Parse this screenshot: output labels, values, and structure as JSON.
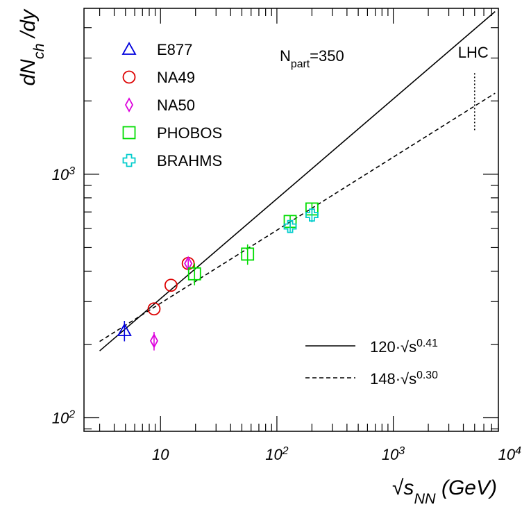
{
  "chart_data": {
    "type": "scatter",
    "x_scale": "log",
    "y_scale": "log",
    "xlim": [
      2.2,
      8000
    ],
    "ylim": [
      88,
      4800
    ],
    "grid": false,
    "legend_placement": "top-left",
    "xlabel": {
      "prefix": "√s",
      "sub": "NN",
      "suffix": " (GeV)"
    },
    "ylabel": {
      "prefix": "dN",
      "sub": "ch",
      "suffix": " /dy"
    },
    "annotation": {
      "base": "N",
      "sub": "part",
      "suffix": "=350"
    },
    "x_ticks": [
      {
        "value": 10,
        "base": "10",
        "exp": ""
      },
      {
        "value": 100,
        "base": "10",
        "exp": "2"
      },
      {
        "value": 1000,
        "base": "10",
        "exp": "3"
      },
      {
        "value": 10000,
        "base": "10",
        "exp": "4"
      }
    ],
    "y_ticks": [
      {
        "value": 100,
        "base": "10",
        "exp": "2"
      },
      {
        "value": 1000,
        "base": "10",
        "exp": "3"
      }
    ],
    "lhc_marker": {
      "label": "LHC",
      "x": 5000,
      "y_range": [
        1500,
        2600
      ]
    },
    "series": [
      {
        "name": "E877",
        "marker": "triangle",
        "color": "#0000dd",
        "points": [
          {
            "x": 4.9,
            "y": 228,
            "err": 22
          }
        ]
      },
      {
        "name": "NA49",
        "marker": "circle",
        "color": "#dd0000",
        "points": [
          {
            "x": 8.8,
            "y": 280,
            "err": 0
          },
          {
            "x": 12.3,
            "y": 350,
            "err": 0
          },
          {
            "x": 17.3,
            "y": 430,
            "err": 0
          }
        ]
      },
      {
        "name": "NA50",
        "marker": "diamond",
        "color": "#dd00dd",
        "points": [
          {
            "x": 8.8,
            "y": 207,
            "err": 18
          },
          {
            "x": 17.3,
            "y": 430,
            "err": 18
          }
        ]
      },
      {
        "name": "PHOBOS",
        "marker": "square",
        "color": "#00dd00",
        "points": [
          {
            "x": 19.6,
            "y": 390,
            "err": 40
          },
          {
            "x": 56,
            "y": 470,
            "err": 45
          },
          {
            "x": 130,
            "y": 640,
            "err": 40
          },
          {
            "x": 200,
            "y": 720,
            "err": 40
          }
        ]
      },
      {
        "name": "BRAHMS",
        "marker": "cross",
        "color": "#00cccc",
        "points": [
          {
            "x": 130,
            "y": 610,
            "err": 30
          },
          {
            "x": 200,
            "y": 680,
            "err": 45
          }
        ]
      }
    ],
    "fits": [
      {
        "coef": 120,
        "exponent": 0.41,
        "label_coef": "120",
        "label_exp": "0.41",
        "style": "solid",
        "x_range": [
          3,
          7500
        ]
      },
      {
        "coef": 148,
        "exponent": 0.3,
        "label_coef": "148",
        "label_exp": "0.30",
        "style": "dashed",
        "x_range": [
          3,
          7500
        ]
      }
    ]
  }
}
